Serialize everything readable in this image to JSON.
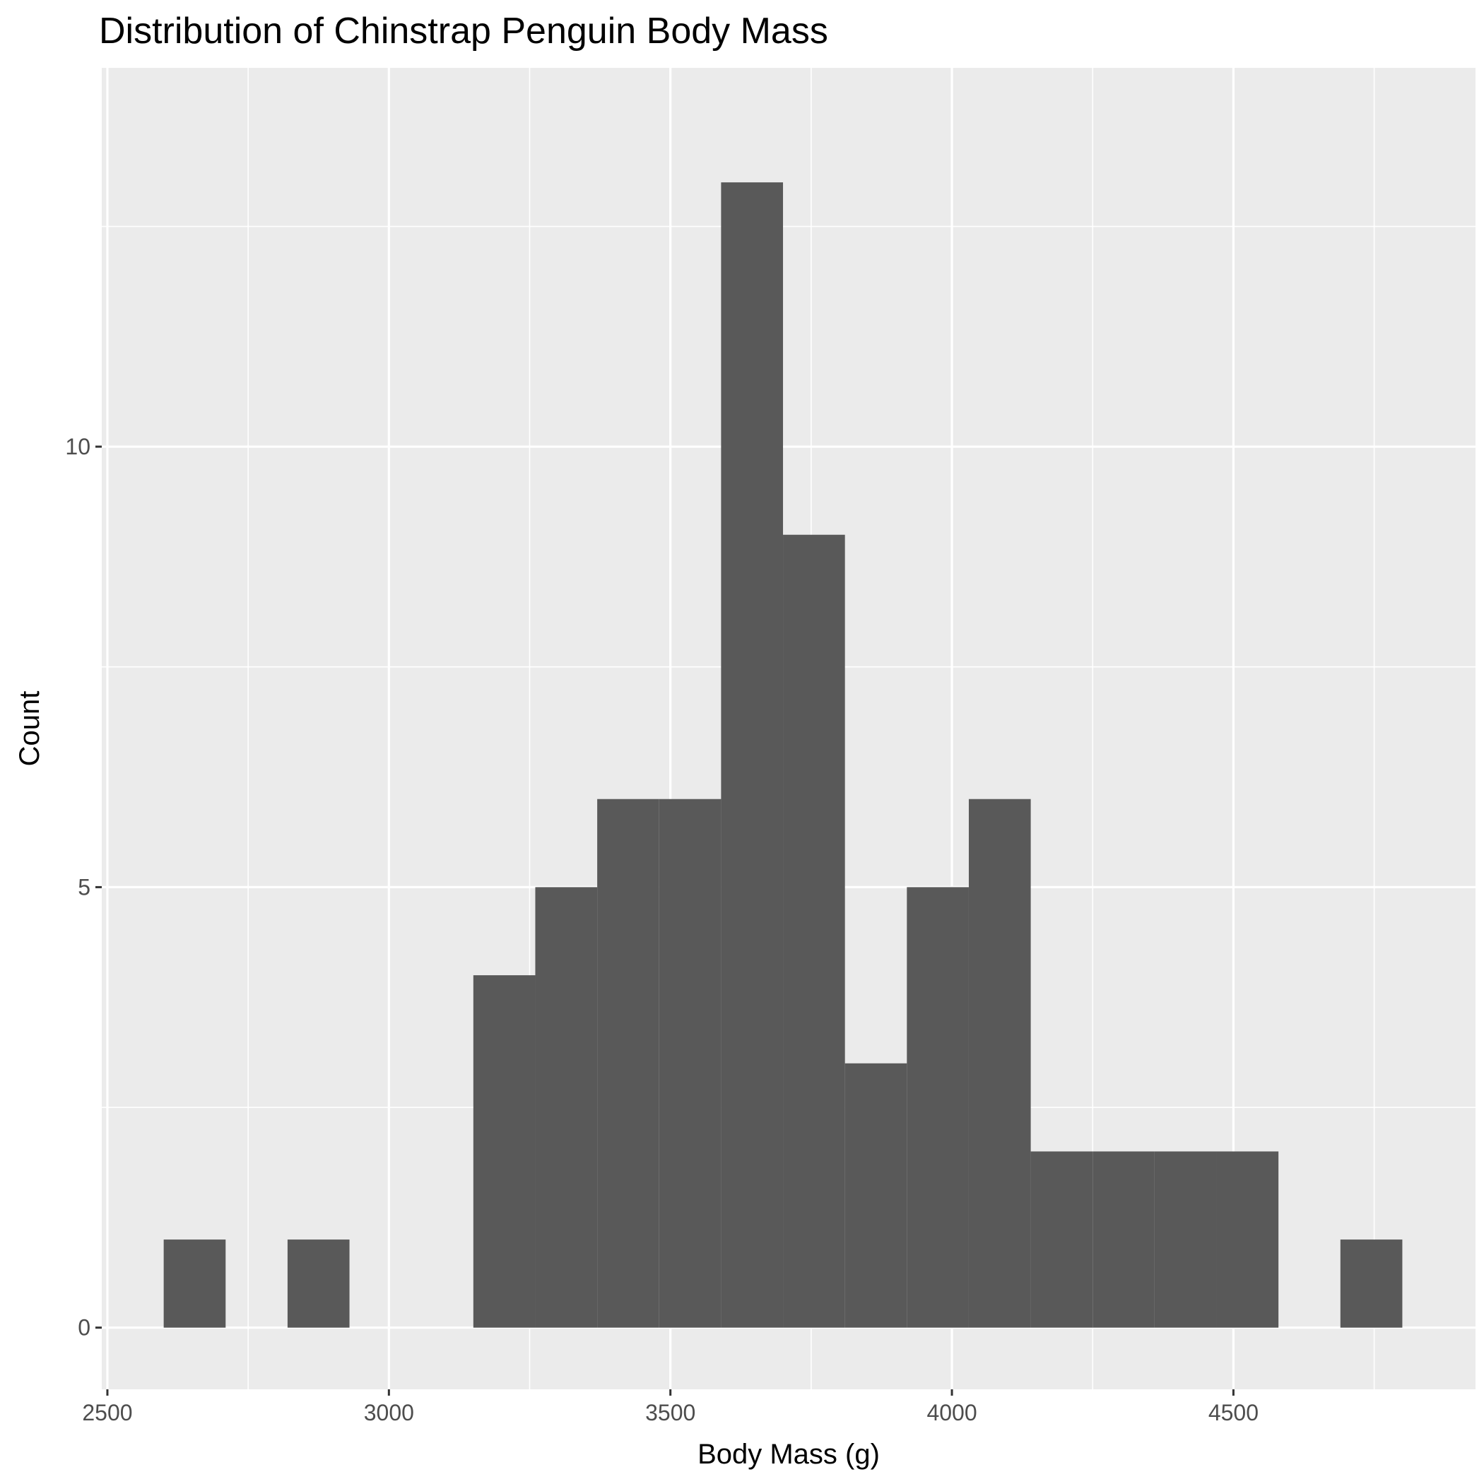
{
  "chart_data": {
    "type": "bar",
    "title": "Distribution of Chinstrap Penguin Body Mass",
    "xlabel": "Body Mass (g)",
    "ylabel": "Count",
    "xlim": [
      2490,
      4930
    ],
    "ylim": [
      -0.7,
      14.3
    ],
    "x_ticks": [
      2500,
      3000,
      3500,
      4000,
      4500
    ],
    "y_ticks": [
      0,
      5,
      10
    ],
    "bin_width": 110,
    "bins": [
      {
        "x0": 2600,
        "x1": 2710,
        "count": 1
      },
      {
        "x0": 2710,
        "x1": 2820,
        "count": 0
      },
      {
        "x0": 2820,
        "x1": 2930,
        "count": 1
      },
      {
        "x0": 2930,
        "x1": 3040,
        "count": 0
      },
      {
        "x0": 3040,
        "x1": 3150,
        "count": 0
      },
      {
        "x0": 3150,
        "x1": 3260,
        "count": 4
      },
      {
        "x0": 3260,
        "x1": 3370,
        "count": 5
      },
      {
        "x0": 3370,
        "x1": 3480,
        "count": 6
      },
      {
        "x0": 3480,
        "x1": 3590,
        "count": 6
      },
      {
        "x0": 3590,
        "x1": 3700,
        "count": 13
      },
      {
        "x0": 3700,
        "x1": 3810,
        "count": 9
      },
      {
        "x0": 3810,
        "x1": 3920,
        "count": 3
      },
      {
        "x0": 3920,
        "x1": 4030,
        "count": 5
      },
      {
        "x0": 4030,
        "x1": 4140,
        "count": 6
      },
      {
        "x0": 4140,
        "x1": 4250,
        "count": 2
      },
      {
        "x0": 4250,
        "x1": 4360,
        "count": 2
      },
      {
        "x0": 4360,
        "x1": 4470,
        "count": 2
      },
      {
        "x0": 4470,
        "x1": 4580,
        "count": 2
      },
      {
        "x0": 4580,
        "x1": 4690,
        "count": 0
      },
      {
        "x0": 4690,
        "x1": 4800,
        "count": 1
      }
    ],
    "grid": true,
    "bar_color": "#595959",
    "panel_color": "#ebebeb",
    "grid_color": "#ffffff"
  }
}
